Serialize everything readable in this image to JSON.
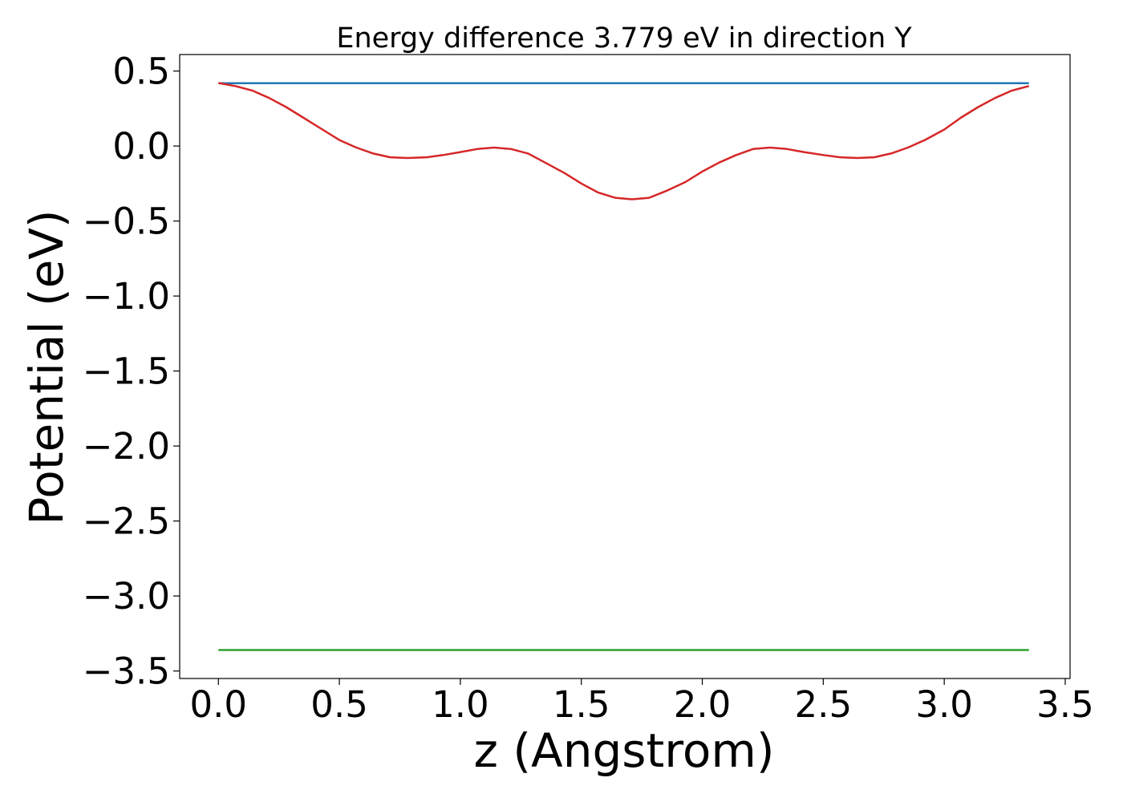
{
  "chart_data": {
    "type": "line",
    "title": "Energy difference 3.779 eV in direction Y",
    "xlabel": "z (Angstrom)",
    "ylabel": "Potential (eV)",
    "xlim": [
      -0.16,
      3.52
    ],
    "ylim": [
      -3.55,
      0.61
    ],
    "xticks": [
      0.0,
      0.5,
      1.0,
      1.5,
      2.0,
      2.5,
      3.0,
      3.5
    ],
    "xtick_labels": [
      "0.0",
      "0.5",
      "1.0",
      "1.5",
      "2.0",
      "2.5",
      "3.0",
      "3.5"
    ],
    "yticks": [
      0.5,
      0.0,
      -0.5,
      -1.0,
      -1.5,
      -2.0,
      -2.5,
      -3.0,
      -3.5
    ],
    "ytick_labels": [
      "0.5",
      "0.0",
      "−0.5",
      "−1.0",
      "−1.5",
      "−2.0",
      "−2.5",
      "−3.0",
      "−3.5"
    ],
    "grid": false,
    "legend": "none",
    "series": [
      {
        "color": "#1f77b4",
        "x": [
          0.0,
          3.35
        ],
        "y": [
          0.419,
          0.419
        ]
      },
      {
        "color": "#d62728",
        "x": [
          0.0,
          0.07,
          0.14,
          0.21,
          0.28,
          0.35,
          0.43,
          0.5,
          0.57,
          0.64,
          0.71,
          0.78,
          0.86,
          0.93,
          1.0,
          1.07,
          1.14,
          1.21,
          1.28,
          1.35,
          1.43,
          1.5,
          1.57,
          1.64,
          1.71,
          1.78,
          1.85,
          1.93,
          2.0,
          2.07,
          2.14,
          2.21,
          2.28,
          2.35,
          2.42,
          2.5,
          2.57,
          2.64,
          2.71,
          2.78,
          2.85,
          2.92,
          3.0,
          3.07,
          3.14,
          3.21,
          3.28,
          3.35
        ],
        "y": [
          0.42,
          0.4,
          0.37,
          0.32,
          0.26,
          0.19,
          0.11,
          0.04,
          -0.01,
          -0.05,
          -0.075,
          -0.08,
          -0.075,
          -0.06,
          -0.04,
          -0.02,
          -0.01,
          -0.02,
          -0.05,
          -0.11,
          -0.18,
          -0.25,
          -0.31,
          -0.345,
          -0.355,
          -0.345,
          -0.3,
          -0.24,
          -0.17,
          -0.11,
          -0.06,
          -0.02,
          -0.01,
          -0.02,
          -0.04,
          -0.06,
          -0.075,
          -0.08,
          -0.075,
          -0.05,
          -0.01,
          0.04,
          0.11,
          0.19,
          0.26,
          0.32,
          0.37,
          0.4
        ]
      },
      {
        "color": "#2ca02c",
        "x": [
          0.0,
          3.35
        ],
        "y": [
          -3.36,
          -3.36
        ]
      }
    ]
  }
}
